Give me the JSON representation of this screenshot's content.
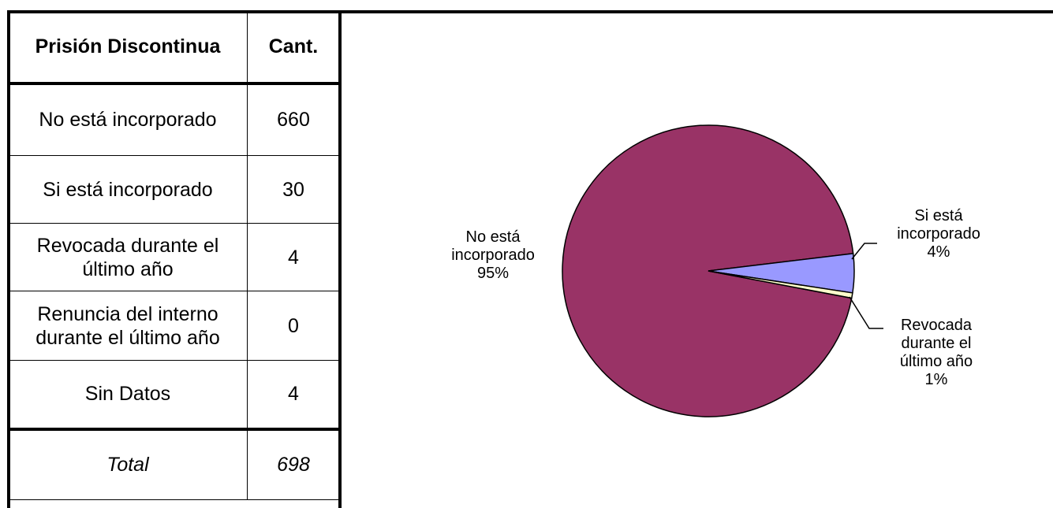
{
  "table": {
    "header": {
      "category": "Prisión Discontinua",
      "count": "Cant."
    },
    "rows": [
      {
        "label_lines": [
          "No está incorporado"
        ],
        "value": "660"
      },
      {
        "label_lines": [
          "Si está incorporado"
        ],
        "value": "30"
      },
      {
        "label_lines": [
          "Revocada durante el",
          "último año"
        ],
        "value": "4"
      },
      {
        "label_lines": [
          "Renuncia del interno",
          "durante el último año"
        ],
        "value": "0"
      },
      {
        "label_lines": [
          "Sin Datos"
        ],
        "value": "4"
      }
    ],
    "total": {
      "label": "Total",
      "value": "698"
    }
  },
  "chart_data": {
    "type": "pie",
    "slices": [
      {
        "label": "No está incorporado",
        "percent_label": "95%",
        "value": 660,
        "color": "#993366"
      },
      {
        "label": "Si está incorporado",
        "percent_label": "4%",
        "value": 30,
        "color": "#9999ff"
      },
      {
        "label": "Revocada durante el último año",
        "percent_label": "1%",
        "value": 4,
        "color": "#ffffcc"
      }
    ],
    "data_labels": [
      {
        "lines": [
          "No está",
          "incorporado",
          "95%"
        ]
      },
      {
        "lines": [
          "Si está",
          "incorporado",
          "4%"
        ]
      },
      {
        "lines": [
          "Revocada",
          "durante el",
          "último año",
          "1%"
        ]
      }
    ]
  }
}
